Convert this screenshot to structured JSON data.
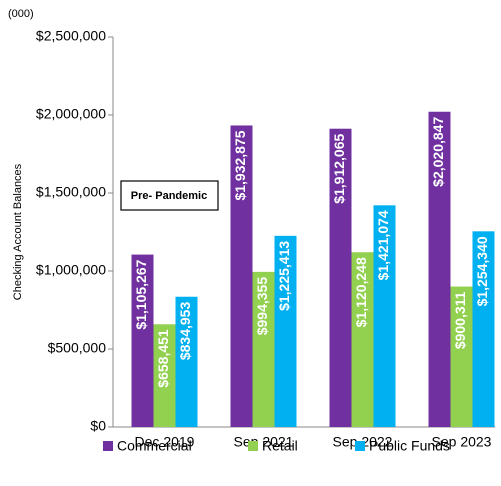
{
  "chart_data": {
    "type": "bar",
    "unit_note": "(000)",
    "ylabel": "Checking Account Balances",
    "annotation": "Pre- Pandemic",
    "categories": [
      "Dec 2019",
      "Sep 2021",
      "Sep 2022",
      "Sep 2023"
    ],
    "series": [
      {
        "name": "Commercial",
        "color": "#7030a0",
        "values": [
          1105267,
          1932875,
          1912065,
          2020847
        ],
        "value_labels": [
          "$1,105,267",
          "$1,932,875",
          "$1,912,065",
          "$2,020,847"
        ]
      },
      {
        "name": "Retail",
        "color": "#92d050",
        "values": [
          658451,
          994355,
          1120248,
          900311
        ],
        "value_labels": [
          "$658,451",
          "$994,355",
          "$1,120,248",
          "$900,311"
        ]
      },
      {
        "name": "Public Funds",
        "color": "#00b0f0",
        "values": [
          834953,
          1225413,
          1421074,
          1254340
        ],
        "value_labels": [
          "$834,953",
          "$1,225,413",
          "$1,421,074",
          "$1,254,340"
        ]
      }
    ],
    "ylim": [
      0,
      2500000
    ],
    "yticks": [
      {
        "value": 0,
        "label": "$0"
      },
      {
        "value": 500000,
        "label": "$500,000"
      },
      {
        "value": 1000000,
        "label": "$1,000,000"
      },
      {
        "value": 1500000,
        "label": "$1,500,000"
      },
      {
        "value": 2000000,
        "label": "$2,000,000"
      },
      {
        "value": 2500000,
        "label": "$2,500,000"
      }
    ],
    "grid": false
  }
}
